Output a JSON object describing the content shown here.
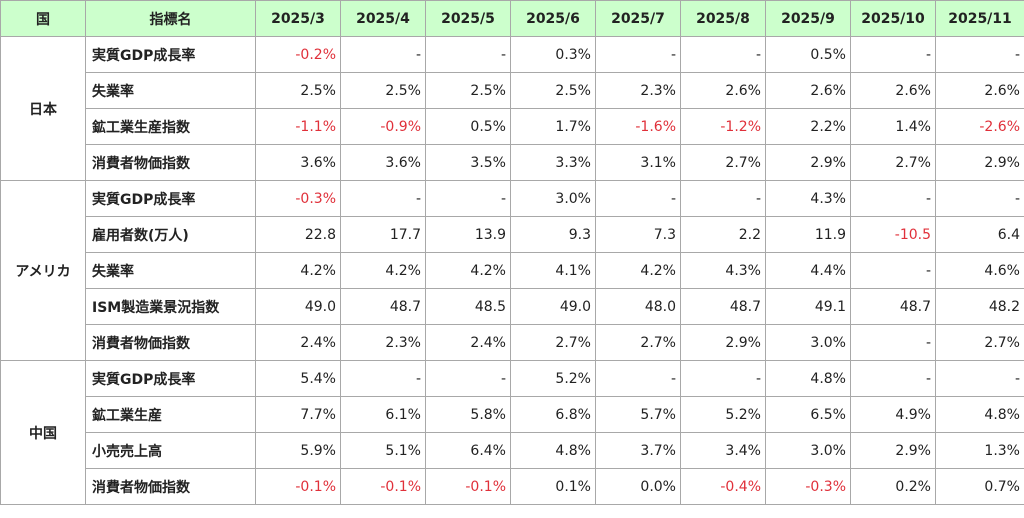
{
  "table": {
    "header": {
      "country": "国",
      "indicator": "指標名",
      "months": [
        "2025/3",
        "2025/4",
        "2025/5",
        "2025/6",
        "2025/7",
        "2025/8",
        "2025/9",
        "2025/10",
        "2025/11"
      ]
    },
    "groups": [
      {
        "country": "日本",
        "rows": [
          {
            "indicator": "実質GDP成長率",
            "values": [
              "-0.2%",
              "-",
              "-",
              "0.3%",
              "-",
              "-",
              "0.5%",
              "-",
              "-"
            ]
          },
          {
            "indicator": "失業率",
            "values": [
              "2.5%",
              "2.5%",
              "2.5%",
              "2.5%",
              "2.3%",
              "2.6%",
              "2.6%",
              "2.6%",
              "2.6%"
            ]
          },
          {
            "indicator": "鉱工業生産指数",
            "values": [
              "-1.1%",
              "-0.9%",
              "0.5%",
              "1.7%",
              "-1.6%",
              "-1.2%",
              "2.2%",
              "1.4%",
              "-2.6%"
            ]
          },
          {
            "indicator": "消費者物価指数",
            "values": [
              "3.6%",
              "3.6%",
              "3.5%",
              "3.3%",
              "3.1%",
              "2.7%",
              "2.9%",
              "2.7%",
              "2.9%"
            ]
          }
        ]
      },
      {
        "country": "アメリカ",
        "rows": [
          {
            "indicator": "実質GDP成長率",
            "values": [
              "-0.3%",
              "-",
              "-",
              "3.0%",
              "-",
              "-",
              "4.3%",
              "-",
              "-"
            ]
          },
          {
            "indicator": "雇用者数(万人)",
            "values": [
              "22.8",
              "17.7",
              "13.9",
              "9.3",
              "7.3",
              "2.2",
              "11.9",
              "-10.5",
              "6.4"
            ]
          },
          {
            "indicator": "失業率",
            "values": [
              "4.2%",
              "4.2%",
              "4.2%",
              "4.1%",
              "4.2%",
              "4.3%",
              "4.4%",
              "-",
              "4.6%"
            ]
          },
          {
            "indicator": "ISM製造業景況指数",
            "values": [
              "49.0",
              "48.7",
              "48.5",
              "49.0",
              "48.0",
              "48.7",
              "49.1",
              "48.7",
              "48.2"
            ]
          },
          {
            "indicator": "消費者物価指数",
            "values": [
              "2.4%",
              "2.3%",
              "2.4%",
              "2.7%",
              "2.7%",
              "2.9%",
              "3.0%",
              "-",
              "2.7%"
            ]
          }
        ]
      },
      {
        "country": "中国",
        "rows": [
          {
            "indicator": "実質GDP成長率",
            "values": [
              "5.4%",
              "-",
              "-",
              "5.2%",
              "-",
              "-",
              "4.8%",
              "-",
              "-"
            ]
          },
          {
            "indicator": "鉱工業生産",
            "values": [
              "7.7%",
              "6.1%",
              "5.8%",
              "6.8%",
              "5.7%",
              "5.2%",
              "6.5%",
              "4.9%",
              "4.8%"
            ]
          },
          {
            "indicator": "小売売上高",
            "values": [
              "5.9%",
              "5.1%",
              "6.4%",
              "4.8%",
              "3.7%",
              "3.4%",
              "3.0%",
              "2.9%",
              "1.3%"
            ]
          },
          {
            "indicator": "消費者物価指数",
            "values": [
              "-0.1%",
              "-0.1%",
              "-0.1%",
              "0.1%",
              "0.0%",
              "-0.4%",
              "-0.3%",
              "0.2%",
              "0.7%"
            ]
          }
        ]
      }
    ]
  }
}
